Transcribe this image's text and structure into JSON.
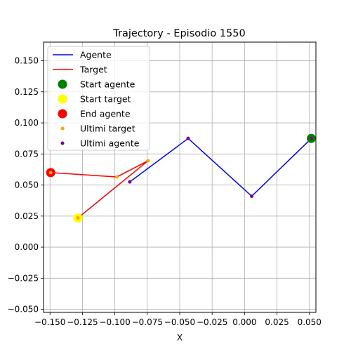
{
  "chart_data": {
    "type": "line",
    "title": "Trajectory - Episodio 1550",
    "xlabel": "X",
    "ylabel": "",
    "xlim": [
      -0.155,
      0.055
    ],
    "ylim": [
      -0.0525,
      0.165
    ],
    "x_ticks": [
      -0.15,
      -0.125,
      -0.1,
      -0.075,
      -0.05,
      -0.025,
      0.0,
      0.025,
      0.05
    ],
    "x_tick_labels": [
      "−0.150",
      "−0.125",
      "−0.100",
      "−0.075",
      "−0.050",
      "−0.025",
      "0.000",
      "0.025",
      "0.050"
    ],
    "y_ticks": [
      -0.05,
      -0.025,
      0.0,
      0.025,
      0.05,
      0.075,
      0.1,
      0.125,
      0.15
    ],
    "y_tick_labels": [
      "−0.050",
      "−0.025",
      "0.000",
      "0.025",
      "0.050",
      "0.075",
      "0.100",
      "0.125",
      "0.150"
    ],
    "grid": true,
    "legend_position": "top-left",
    "series": [
      {
        "name": "Agente",
        "kind": "line",
        "color": "#0000ff",
        "x": [
          0.0515,
          0.0055,
          -0.0435,
          -0.0885
        ],
        "y": [
          0.0875,
          0.041,
          0.0875,
          0.0525
        ]
      },
      {
        "name": "Target",
        "kind": "line",
        "color": "#ff0000",
        "x": [
          -0.1285,
          -0.0745,
          -0.0985,
          -0.1495
        ],
        "y": [
          0.0235,
          0.0695,
          0.0565,
          0.06
        ]
      }
    ],
    "markers": [
      {
        "name": "Start agente",
        "color": "#008000",
        "size": "large",
        "points": [
          [
            0.0515,
            0.0875
          ]
        ]
      },
      {
        "name": "Start target",
        "color": "#ffff00",
        "size": "large",
        "points": [
          [
            -0.1285,
            0.0235
          ]
        ]
      },
      {
        "name": "End agente",
        "color": "#ff0000",
        "size": "large",
        "points": [
          [
            -0.1495,
            0.06
          ]
        ]
      },
      {
        "name": "Ultimi target",
        "color": "#ffa500",
        "size": "small",
        "points": [
          [
            -0.1285,
            0.0235
          ],
          [
            -0.0745,
            0.0695
          ],
          [
            -0.0985,
            0.0565
          ],
          [
            -0.1495,
            0.06
          ]
        ]
      },
      {
        "name": "Ultimi agente",
        "color": "#800080",
        "size": "small",
        "points": [
          [
            0.0515,
            0.0875
          ],
          [
            0.0055,
            0.041
          ],
          [
            -0.0435,
            0.0875
          ],
          [
            -0.0885,
            0.0525
          ]
        ]
      }
    ]
  }
}
